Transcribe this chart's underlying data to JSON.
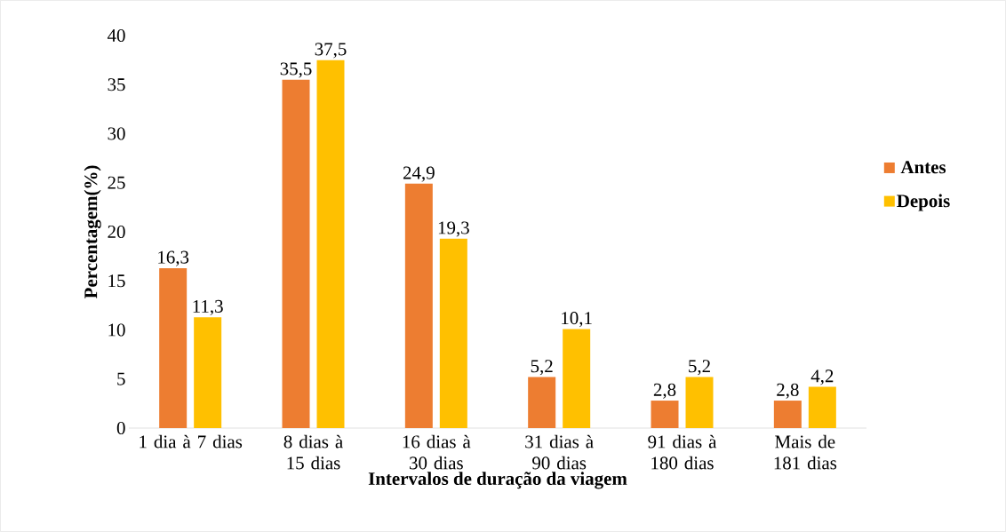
{
  "chart_data": {
    "type": "bar",
    "xlabel": "Intervalos de duração da viagem",
    "ylabel": "Percentagem(%)",
    "categories": [
      "1 dia à 7 dias",
      "8 dias à 15 dias",
      "16 dias à 30 dias",
      "31 dias à 90 dias",
      "91 dias à 180 dias",
      "Mais de 181 dias"
    ],
    "series": [
      {
        "name": "Antes",
        "color": "#ed7d31",
        "values": [
          16.3,
          35.5,
          24.9,
          5.2,
          2.8,
          2.8
        ],
        "value_labels": [
          "16,3",
          "35,5",
          "24,9",
          "5,2",
          "2,8",
          "2,8"
        ]
      },
      {
        "name": "Depois",
        "color": "#ffc000",
        "values": [
          11.3,
          37.5,
          19.3,
          10.1,
          5.2,
          4.2
        ],
        "value_labels": [
          "11,3",
          "37,5",
          "19,3",
          "10,1",
          "5,2",
          "4,2"
        ]
      }
    ],
    "ylim": [
      0,
      40
    ],
    "yticks": [
      0,
      5,
      10,
      15,
      20,
      25,
      30,
      35,
      40
    ],
    "grid": false,
    "legend": "right"
  }
}
